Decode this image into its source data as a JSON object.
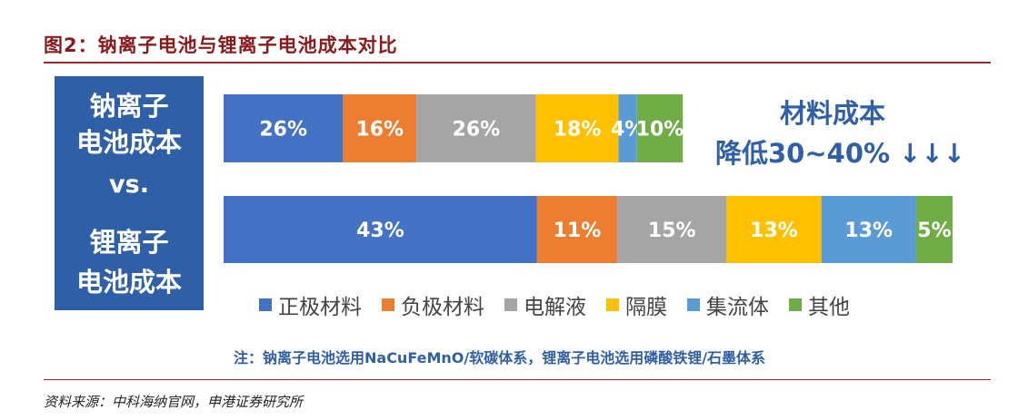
{
  "title": "图2：钠离子电池与锂离子电池成本对比",
  "left_panel": {
    "line1": "钠离子",
    "line2": "电池成本",
    "vs": "vs.",
    "line3": "锂离子",
    "line4": "电池成本"
  },
  "statement": {
    "line1": "材料成本",
    "line2": "降低30~40% ↓↓↓"
  },
  "chart_data": {
    "type": "bar",
    "orientation": "horizontal",
    "stacked": true,
    "categories": [
      "钠离子电池成本",
      "锂离子电池成本"
    ],
    "series": [
      {
        "name": "正极材料",
        "color": "#4472c4",
        "values": [
          26,
          43
        ],
        "labels": [
          "26%",
          "43%"
        ]
      },
      {
        "name": "负极材料",
        "color": "#ed7d31",
        "values": [
          16,
          11
        ],
        "labels": [
          "16%",
          "11%"
        ]
      },
      {
        "name": "电解液",
        "color": "#a5a5a5",
        "values": [
          26,
          15
        ],
        "labels": [
          "26%",
          "15%"
        ]
      },
      {
        "name": "隔膜",
        "color": "#ffc000",
        "values": [
          18,
          13
        ],
        "labels": [
          "18%",
          "13%"
        ]
      },
      {
        "name": "集流体",
        "color": "#5b9bd5",
        "values": [
          4,
          13
        ],
        "labels": [
          "4%",
          "13%"
        ]
      },
      {
        "name": "其他",
        "color": "#70ad47",
        "values": [
          10,
          5
        ],
        "labels": [
          "10%",
          "5%"
        ]
      }
    ],
    "row_totals_share_of_lithium": [
      0.63,
      1.0
    ],
    "grid": false,
    "legend_position": "bottom"
  },
  "note": "注：钠离子电池选用NaCuFeMnO/软碳体系，锂离子电池选用磷酸铁锂/石墨体系",
  "source": "资料来源：中科海纳官网，申港证券研究所"
}
